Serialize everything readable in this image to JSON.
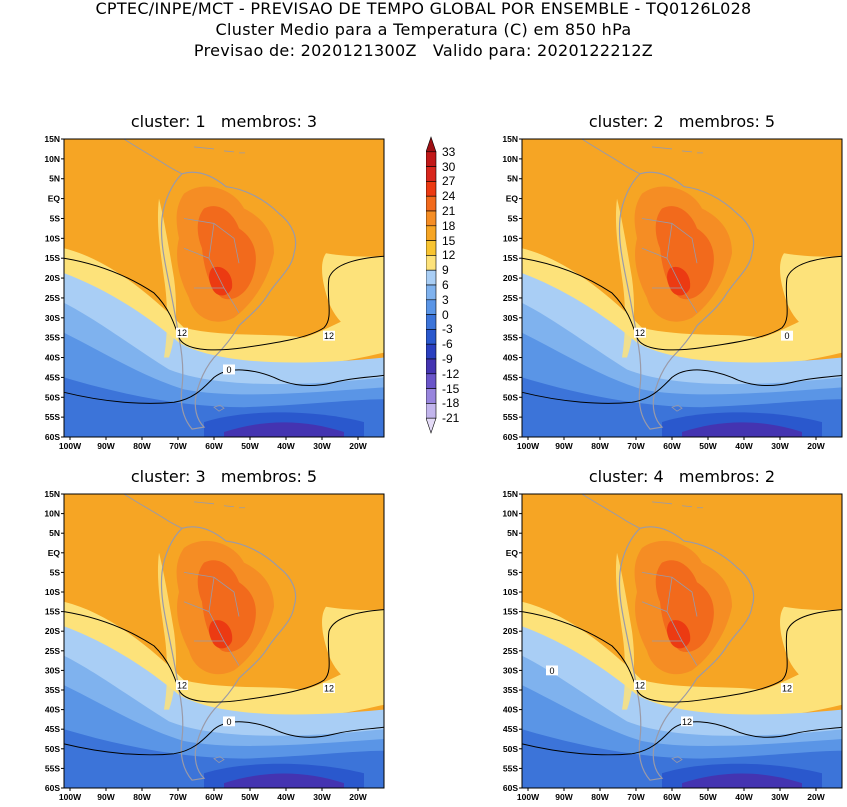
{
  "header": {
    "line1": "CPTEC/INPE/MCT - PREVISAO DE TEMPO GLOBAL POR ENSEMBLE - TQ0126L028",
    "line2": "Cluster Medio para a Temperatura (C) em 850 hPa",
    "line3": "Previsao de: 2020121300Z   Valido para: 2020122212Z"
  },
  "panels": [
    {
      "title": "cluster: 1   membros: 3",
      "contour_labels": [
        "12",
        "12",
        "0"
      ]
    },
    {
      "title": "cluster: 2   membros: 5",
      "contour_labels": [
        "12",
        "0"
      ]
    },
    {
      "title": "cluster: 3   membros: 5",
      "contour_labels": [
        "12",
        "12",
        "0"
      ]
    },
    {
      "title": "cluster: 4   membros: 2",
      "contour_labels": [
        "12",
        "12",
        "12",
        "0"
      ]
    }
  ],
  "axes": {
    "lat_ticks": [
      "15N",
      "10N",
      "5N",
      "EQ",
      "5S",
      "10S",
      "15S",
      "20S",
      "25S",
      "30S",
      "35S",
      "40S",
      "45S",
      "50S",
      "55S",
      "60S"
    ],
    "lon_ticks": [
      "100W",
      "90W",
      "80W",
      "70W",
      "60W",
      "50W",
      "40W",
      "30W",
      "20W"
    ]
  },
  "colorbar": {
    "labels": [
      "33",
      "30",
      "27",
      "24",
      "21",
      "18",
      "15",
      "12",
      "9",
      "6",
      "3",
      "0",
      "-3",
      "-6",
      "-9",
      "-12",
      "-15",
      "-18",
      "-21"
    ],
    "colors": [
      "#9e1014",
      "#c11818",
      "#d8261c",
      "#ec3a12",
      "#f26a1c",
      "#f58d24",
      "#f6a524",
      "#f8c431",
      "#fde27a",
      "#a9cef5",
      "#7fb2ee",
      "#5a95e6",
      "#3c74d9",
      "#2a58cd",
      "#2a3fbf",
      "#4434b1",
      "#6a55c9",
      "#9885dd",
      "#c2b5ec",
      "#e4dbf7"
    ]
  }
}
